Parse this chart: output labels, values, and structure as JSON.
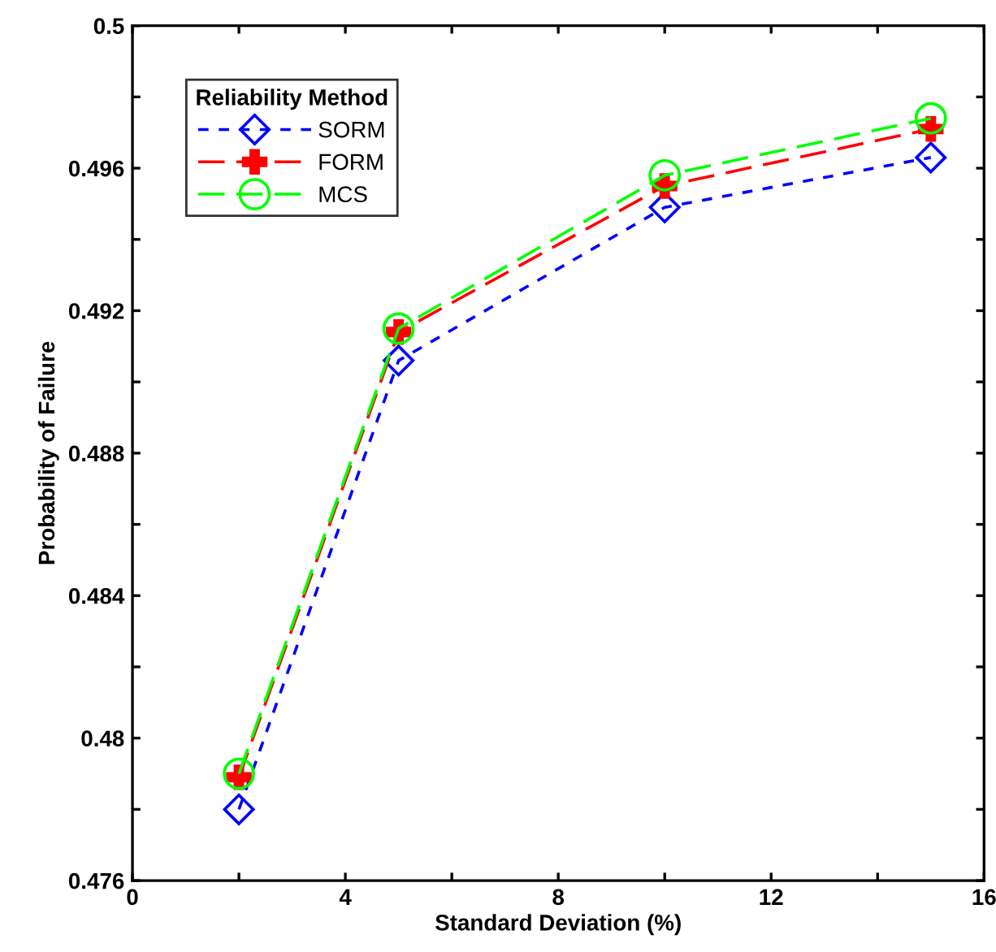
{
  "chart_data": {
    "type": "line",
    "xlabel": "Standard Deviation (%)",
    "ylabel": "Probability of Failure",
    "legend_title": "Reliability Method",
    "legend": "top left",
    "grid": false,
    "x": [
      2,
      5,
      10,
      15
    ],
    "series": [
      {
        "name": "SORM",
        "color": "#0000ff",
        "marker": "diamond",
        "line_style": "dotted",
        "values": [
          0.478,
          0.4906,
          0.4949,
          0.4963
        ]
      },
      {
        "name": "FORM",
        "color": "#ff0000",
        "marker": "cross",
        "line_style": "dashed",
        "values": [
          0.4789,
          0.4914,
          0.4955,
          0.4971
        ]
      },
      {
        "name": "MCS",
        "color": "#00ff00",
        "marker": "circle",
        "line_style": "dashed",
        "values": [
          0.479,
          0.4915,
          0.4958,
          0.4974
        ]
      }
    ],
    "xlim": [
      0,
      16
    ],
    "ylim": [
      0.476,
      0.5
    ],
    "xticks": [
      0,
      {
        "value": 2,
        "label": null
      },
      4,
      {
        "value": 6,
        "label": null
      },
      8,
      {
        "value": 10,
        "label": null
      },
      12,
      {
        "value": 14,
        "label": null
      },
      16
    ],
    "yticks": [
      0.476,
      {
        "value": 0.478,
        "label": null
      },
      0.48,
      {
        "value": 0.482,
        "label": null
      },
      0.484,
      {
        "value": 0.486,
        "label": null
      },
      0.488,
      {
        "value": 0.49,
        "label": null
      },
      0.492,
      {
        "value": 0.494,
        "label": null
      },
      0.496,
      {
        "value": 0.498,
        "label": null
      },
      0.5
    ]
  }
}
